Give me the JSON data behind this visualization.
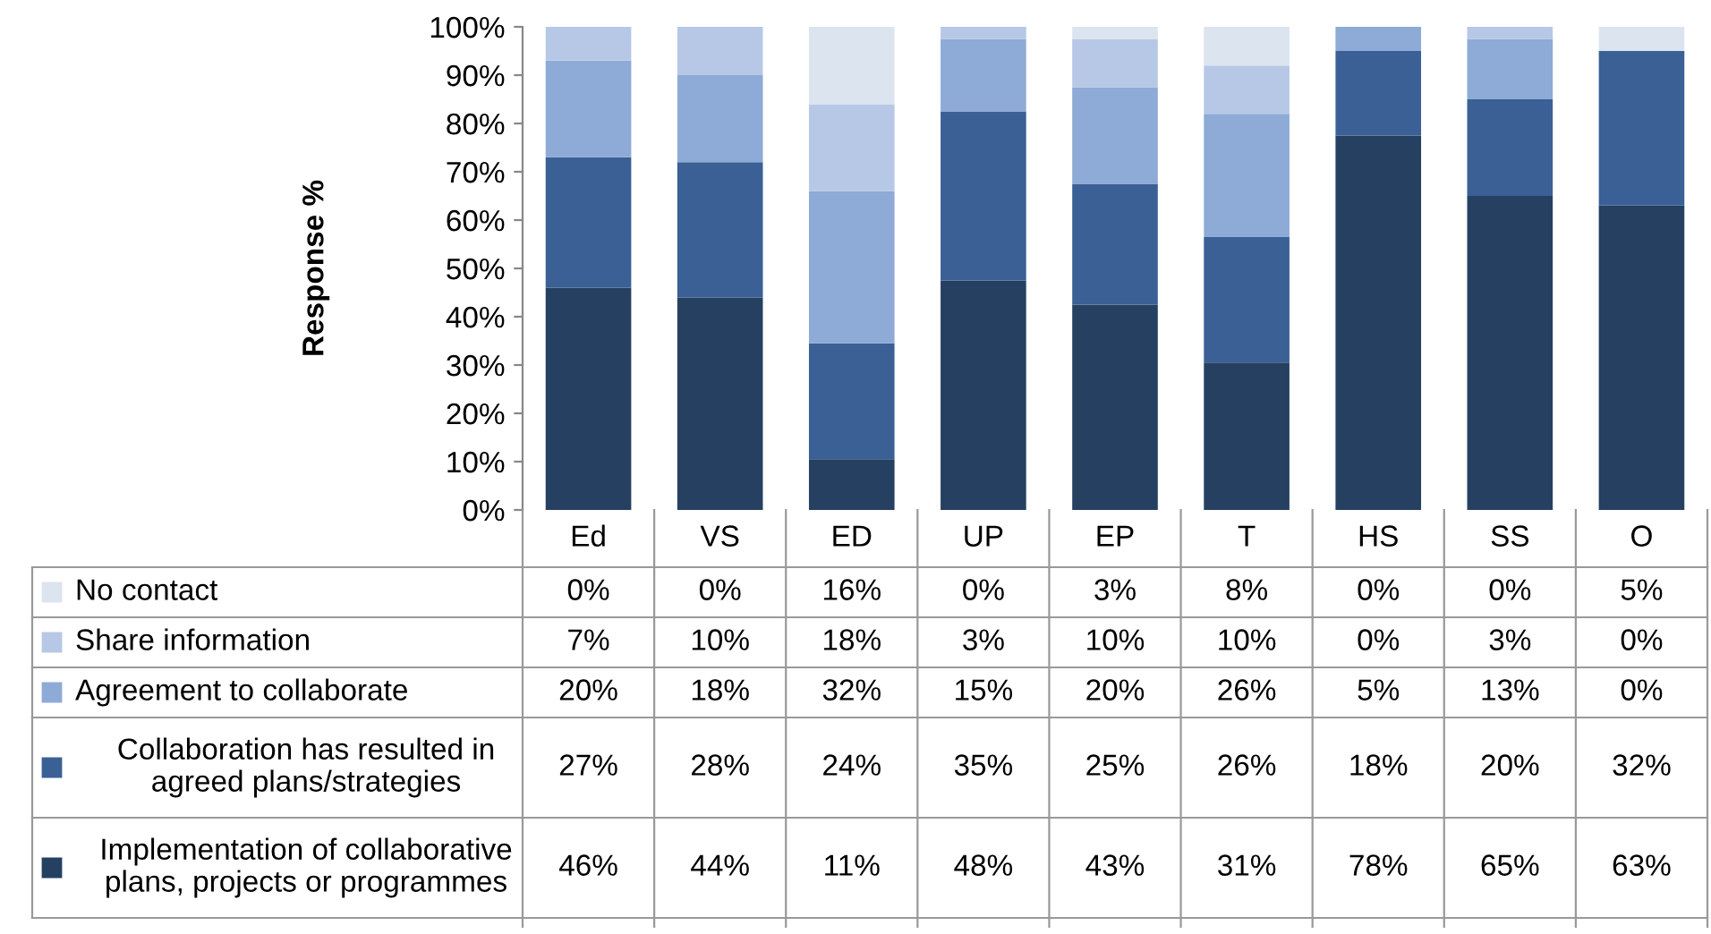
{
  "chart_data": {
    "type": "bar",
    "stacked": true,
    "ylabel": "Response %",
    "categories": [
      "Ed",
      "VS",
      "ED",
      "UP",
      "EP",
      "T",
      "HS",
      "SS",
      "O"
    ],
    "series": [
      {
        "name": "Implementation of collaborative\nplans, projects or programmes",
        "color": "#254061",
        "values": [
          46,
          44,
          10.5,
          47.5,
          42.5,
          30.5,
          77.5,
          65,
          63
        ],
        "value_labels": [
          "46%",
          "44%",
          "11%",
          "48%",
          "43%",
          "31%",
          "78%",
          "65%",
          "63%"
        ]
      },
      {
        "name": "Collaboration has resulted in\nagreed plans/strategies",
        "color": "#3a6096",
        "values": [
          27,
          28,
          24,
          35,
          25,
          26,
          17.5,
          20,
          32
        ],
        "value_labels": [
          "27%",
          "28%",
          "24%",
          "35%",
          "25%",
          "26%",
          "18%",
          "20%",
          "32%"
        ]
      },
      {
        "name": "Agreement to collaborate",
        "color": "#8eaad6",
        "values": [
          20,
          18,
          31.5,
          15,
          20,
          25.5,
          5,
          12.5,
          0
        ],
        "value_labels": [
          "20%",
          "18%",
          "32%",
          "15%",
          "20%",
          "26%",
          "5%",
          "13%",
          "0%"
        ]
      },
      {
        "name": "Share information",
        "color": "#b7c8e6",
        "values": [
          7,
          10,
          18,
          2.5,
          10,
          10,
          0,
          2.5,
          0
        ],
        "value_labels": [
          "7%",
          "10%",
          "18%",
          "3%",
          "10%",
          "10%",
          "0%",
          "3%",
          "0%"
        ]
      },
      {
        "name": "No contact",
        "color": "#dce4f0",
        "values": [
          0,
          0,
          16,
          0,
          2.5,
          8,
          0,
          0,
          5
        ],
        "value_labels": [
          "0%",
          "0%",
          "16%",
          "0%",
          "3%",
          "8%",
          "0%",
          "0%",
          "5%"
        ]
      }
    ],
    "ylim": [
      0,
      100
    ],
    "yticks": [
      {
        "value": 0,
        "label": "0%"
      },
      {
        "value": 10,
        "label": "10%"
      },
      {
        "value": 20,
        "label": "20%"
      },
      {
        "value": 30,
        "label": "30%"
      },
      {
        "value": 40,
        "label": "40%"
      },
      {
        "value": 50,
        "label": "50%"
      },
      {
        "value": 60,
        "label": "60%"
      },
      {
        "value": 70,
        "label": "70%"
      },
      {
        "value": 80,
        "label": "80%"
      },
      {
        "value": 90,
        "label": "90%"
      },
      {
        "value": 100,
        "label": "100%"
      }
    ],
    "grid": false,
    "legend": "bottom"
  }
}
